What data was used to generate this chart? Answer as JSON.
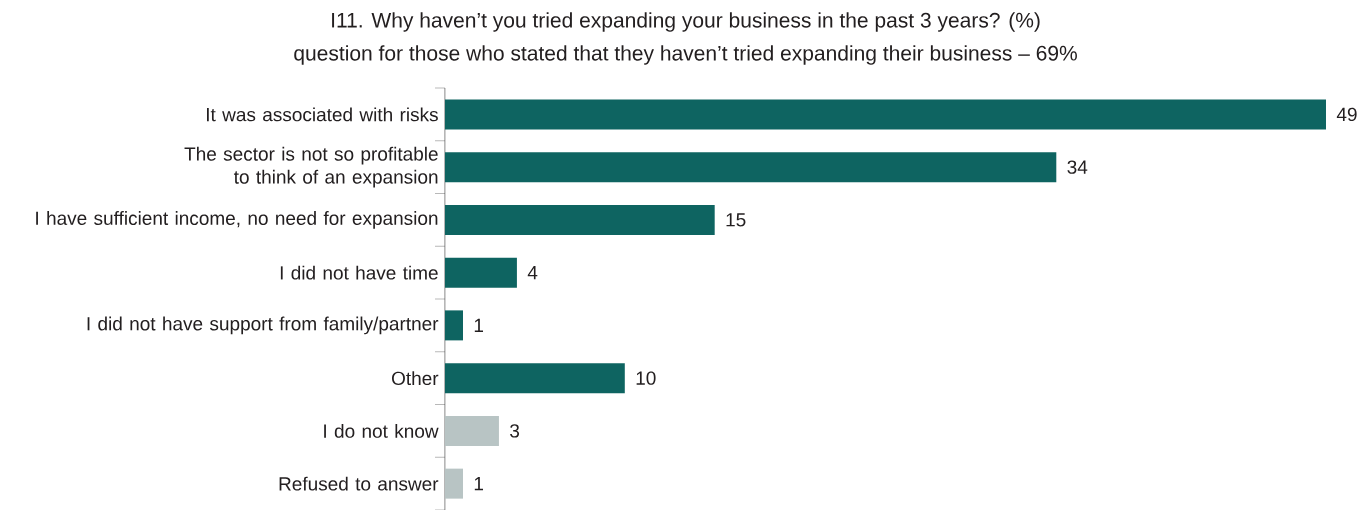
{
  "chart_data": {
    "type": "bar",
    "orientation": "horizontal",
    "title": "I11. Why haven’t you tried expanding your business in the past 3 years? (%)",
    "subtitle": "question for those who stated that they haven’t tried expanding their business – 69%",
    "categories": [
      "It was associated with risks",
      "The sector is not so profitable to think of an expansion",
      "I have sufficient income, no need for expansion",
      "I did not have time",
      "I did not have support from family/partner",
      "Other",
      "I do not know",
      "Refused to answer"
    ],
    "values": [
      49,
      34,
      15,
      4,
      1,
      10,
      3,
      1
    ],
    "colors": [
      "#0e6461",
      "#0e6461",
      "#0e6461",
      "#0e6461",
      "#0e6461",
      "#0e6461",
      "#b8c4c4",
      "#b8c4c4"
    ],
    "data_labels": true
  }
}
